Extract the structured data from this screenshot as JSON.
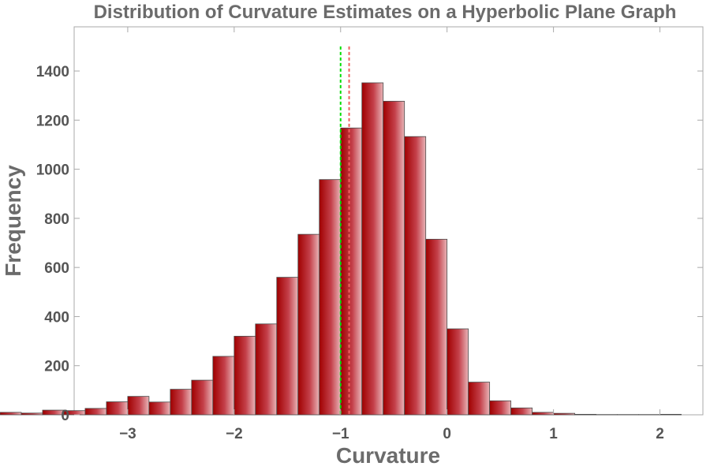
{
  "chart_data": {
    "type": "bar",
    "title": "Distribution of Curvature Estimates on a Hyperbolic Plane Graph",
    "xlabel": "Curvature",
    "ylabel": "Frequency",
    "xlim": [
      -4.2,
      2.3
    ],
    "ylim": [
      0,
      1580
    ],
    "bin_width": 0.2,
    "bins": [
      {
        "start": -4.2,
        "end": -4.0,
        "count": 10
      },
      {
        "start": -4.0,
        "end": -3.8,
        "count": 7
      },
      {
        "start": -3.8,
        "end": -3.6,
        "count": 19
      },
      {
        "start": -3.6,
        "end": -3.4,
        "count": 17
      },
      {
        "start": -3.4,
        "end": -3.2,
        "count": 26
      },
      {
        "start": -3.2,
        "end": -3.0,
        "count": 53
      },
      {
        "start": -3.0,
        "end": -2.8,
        "count": 75
      },
      {
        "start": -2.8,
        "end": -2.6,
        "count": 52
      },
      {
        "start": -2.6,
        "end": -2.4,
        "count": 104
      },
      {
        "start": -2.4,
        "end": -2.2,
        "count": 141
      },
      {
        "start": -2.2,
        "end": -2.0,
        "count": 238
      },
      {
        "start": -2.0,
        "end": -1.8,
        "count": 320
      },
      {
        "start": -1.8,
        "end": -1.6,
        "count": 370
      },
      {
        "start": -1.6,
        "end": -1.4,
        "count": 560
      },
      {
        "start": -1.4,
        "end": -1.2,
        "count": 735
      },
      {
        "start": -1.2,
        "end": -1.0,
        "count": 958
      },
      {
        "start": -1.0,
        "end": -0.8,
        "count": 1168
      },
      {
        "start": -0.8,
        "end": -0.6,
        "count": 1352
      },
      {
        "start": -0.6,
        "end": -0.4,
        "count": 1277
      },
      {
        "start": -0.4,
        "end": -0.2,
        "count": 1133
      },
      {
        "start": -0.2,
        "end": 0.0,
        "count": 715
      },
      {
        "start": 0.0,
        "end": 0.2,
        "count": 350
      },
      {
        "start": 0.2,
        "end": 0.4,
        "count": 133
      },
      {
        "start": 0.4,
        "end": 0.6,
        "count": 57
      },
      {
        "start": 0.6,
        "end": 0.8,
        "count": 28
      },
      {
        "start": 0.8,
        "end": 1.0,
        "count": 10
      },
      {
        "start": 1.0,
        "end": 1.2,
        "count": 6
      },
      {
        "start": 1.2,
        "end": 1.4,
        "count": 2
      },
      {
        "start": 1.4,
        "end": 1.6,
        "count": 1
      },
      {
        "start": 1.6,
        "end": 1.8,
        "count": 1
      },
      {
        "start": 1.8,
        "end": 2.0,
        "count": 1
      },
      {
        "start": 2.0,
        "end": 2.2,
        "count": 2
      }
    ],
    "x_ticks": [
      {
        "value": -3,
        "label": "−3"
      },
      {
        "value": -2,
        "label": "−2"
      },
      {
        "value": -1,
        "label": "−1"
      },
      {
        "value": 0,
        "label": "0"
      },
      {
        "value": 1,
        "label": "1"
      },
      {
        "value": 2,
        "label": "2"
      }
    ],
    "y_ticks": [
      {
        "value": 0,
        "label": "0"
      },
      {
        "value": 200,
        "label": "200"
      },
      {
        "value": 400,
        "label": "400"
      },
      {
        "value": 600,
        "label": "600"
      },
      {
        "value": 800,
        "label": "800"
      },
      {
        "value": 1000,
        "label": "1000"
      },
      {
        "value": 1200,
        "label": "1200"
      },
      {
        "value": 1400,
        "label": "1400"
      }
    ],
    "reference_lines": [
      {
        "x": -1.0,
        "top": 1500,
        "color": "#00dd00",
        "style": "dashed"
      },
      {
        "x": -0.92,
        "top": 1500,
        "color": "#f06060",
        "style": "dashed"
      }
    ],
    "bar_colors": {
      "dark": "#a00000",
      "mid": "#c4404a",
      "light": "#e9b5b8"
    },
    "grid": false,
    "legend": "none"
  }
}
